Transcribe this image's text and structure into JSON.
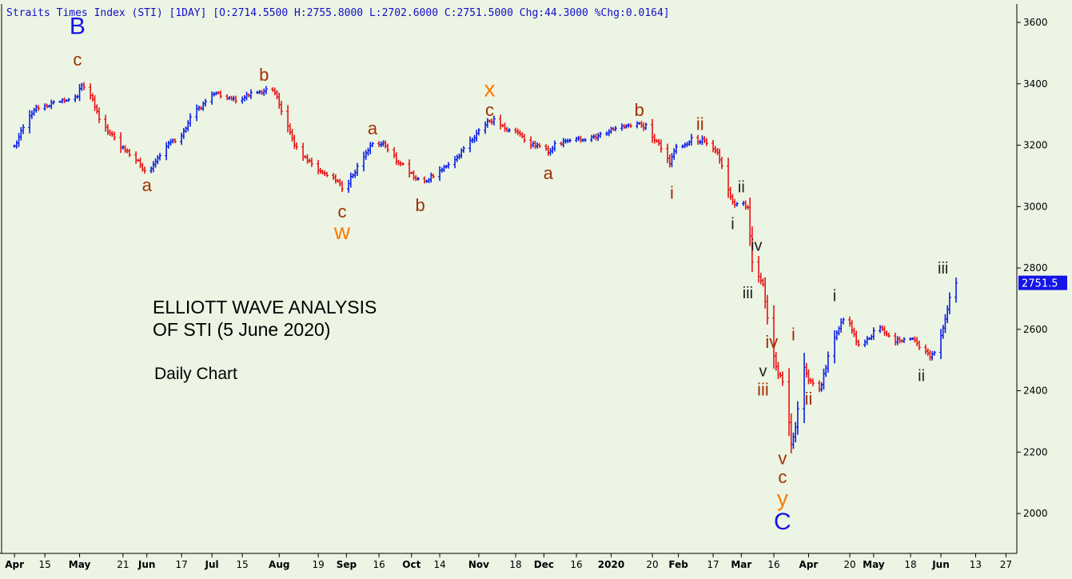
{
  "header": {
    "title": "Straits Times Index (STI) [1DAY] [O:2714.5500 H:2755.8000 L:2702.6000 C:2751.5000 Chg:44.3000 %Chg:0.0164]"
  },
  "annotation": {
    "line1": "ELLIOTT WAVE ANALYSIS",
    "line2": "OF STI (5 June 2020)",
    "line3": "Daily Chart"
  },
  "chart_data": {
    "type": "bar",
    "title": "Straits Times Index (STI) [1DAY]",
    "ohlc": {
      "open": 2714.55,
      "high": 2755.8,
      "low": 2702.6,
      "close": 2751.5,
      "chg": 44.3,
      "pct_chg": 0.0164
    },
    "last_price_label": "2751.5",
    "ylim": [
      1870,
      3660
    ],
    "y_ticks": [
      2000,
      2200,
      2400,
      2600,
      2800,
      3000,
      3200,
      3400,
      3600
    ],
    "x_ticks": [
      {
        "label": "Apr",
        "bold": true,
        "day": 0
      },
      {
        "label": "15",
        "bold": false,
        "day": 14
      },
      {
        "label": "May",
        "bold": true,
        "day": 30
      },
      {
        "label": "21",
        "bold": false,
        "day": 50
      },
      {
        "label": "Jun",
        "bold": true,
        "day": 61
      },
      {
        "label": "17",
        "bold": false,
        "day": 77
      },
      {
        "label": "Jul",
        "bold": true,
        "day": 91
      },
      {
        "label": "15",
        "bold": false,
        "day": 105
      },
      {
        "label": "Aug",
        "bold": true,
        "day": 122
      },
      {
        "label": "19",
        "bold": false,
        "day": 140
      },
      {
        "label": "Sep",
        "bold": true,
        "day": 153
      },
      {
        "label": "16",
        "bold": false,
        "day": 168
      },
      {
        "label": "Oct",
        "bold": true,
        "day": 183
      },
      {
        "label": "14",
        "bold": false,
        "day": 196
      },
      {
        "label": "Nov",
        "bold": true,
        "day": 214
      },
      {
        "label": "18",
        "bold": false,
        "day": 231
      },
      {
        "label": "Dec",
        "bold": true,
        "day": 244
      },
      {
        "label": "16",
        "bold": false,
        "day": 259
      },
      {
        "label": "2020",
        "bold": true,
        "day": 275
      },
      {
        "label": "20",
        "bold": false,
        "day": 294
      },
      {
        "label": "Feb",
        "bold": true,
        "day": 306
      },
      {
        "label": "17",
        "bold": false,
        "day": 322
      },
      {
        "label": "Mar",
        "bold": true,
        "day": 335
      },
      {
        "label": "16",
        "bold": false,
        "day": 350
      },
      {
        "label": "Apr",
        "bold": true,
        "day": 366
      },
      {
        "label": "20",
        "bold": false,
        "day": 385
      },
      {
        "label": "May",
        "bold": true,
        "day": 396
      },
      {
        "label": "18",
        "bold": false,
        "day": 413
      },
      {
        "label": "Jun",
        "bold": true,
        "day": 427
      },
      {
        "label": "13",
        "bold": false,
        "day": 443
      },
      {
        "label": "27",
        "bold": false,
        "day": 457
      }
    ],
    "x_range_days": [
      -3,
      462
    ],
    "price_path": [
      [
        0,
        3195
      ],
      [
        5,
        3270
      ],
      [
        10,
        3320
      ],
      [
        20,
        3340
      ],
      [
        29,
        3360
      ],
      [
        31,
        3400
      ],
      [
        34,
        3380
      ],
      [
        40,
        3270
      ],
      [
        45,
        3230
      ],
      [
        50,
        3190
      ],
      [
        55,
        3160
      ],
      [
        60,
        3120
      ],
      [
        63,
        3130
      ],
      [
        68,
        3180
      ],
      [
        72,
        3210
      ],
      [
        77,
        3230
      ],
      [
        82,
        3300
      ],
      [
        88,
        3340
      ],
      [
        92,
        3370
      ],
      [
        98,
        3350
      ],
      [
        104,
        3350
      ],
      [
        110,
        3370
      ],
      [
        116,
        3380
      ],
      [
        120,
        3370
      ],
      [
        124,
        3300
      ],
      [
        129,
        3200
      ],
      [
        134,
        3160
      ],
      [
        140,
        3120
      ],
      [
        146,
        3100
      ],
      [
        150,
        3070
      ],
      [
        152,
        3050
      ],
      [
        154,
        3080
      ],
      [
        158,
        3130
      ],
      [
        162,
        3180
      ],
      [
        166,
        3210
      ],
      [
        171,
        3200
      ],
      [
        176,
        3150
      ],
      [
        181,
        3120
      ],
      [
        185,
        3090
      ],
      [
        189,
        3080
      ],
      [
        194,
        3110
      ],
      [
        199,
        3130
      ],
      [
        204,
        3160
      ],
      [
        209,
        3200
      ],
      [
        214,
        3250
      ],
      [
        218,
        3280
      ],
      [
        221,
        3280
      ],
      [
        226,
        3250
      ],
      [
        232,
        3240
      ],
      [
        237,
        3210
      ],
      [
        243,
        3190
      ],
      [
        246,
        3180
      ],
      [
        249,
        3200
      ],
      [
        254,
        3210
      ],
      [
        261,
        3220
      ],
      [
        268,
        3230
      ],
      [
        275,
        3250
      ],
      [
        281,
        3260
      ],
      [
        287,
        3270
      ],
      [
        291,
        3260
      ],
      [
        294,
        3230
      ],
      [
        297,
        3200
      ],
      [
        300,
        3170
      ],
      [
        302,
        3140
      ],
      [
        304,
        3180
      ],
      [
        306,
        3210
      ],
      [
        308,
        3200
      ],
      [
        312,
        3220
      ],
      [
        317,
        3215
      ],
      [
        320,
        3200
      ],
      [
        324,
        3170
      ],
      [
        327,
        3110
      ],
      [
        330,
        3030
      ],
      [
        332,
        3000
      ],
      [
        335,
        3030
      ],
      [
        338,
        2990
      ],
      [
        340,
        2820
      ],
      [
        342,
        2790
      ],
      [
        345,
        2740
      ],
      [
        348,
        2580
      ],
      [
        350,
        2510
      ],
      [
        352,
        2460
      ],
      [
        354,
        2430
      ],
      [
        356,
        2350
      ],
      [
        357,
        2300
      ],
      [
        358,
        2230
      ],
      [
        360,
        2280
      ],
      [
        362,
        2400
      ],
      [
        364,
        2480
      ],
      [
        366,
        2440
      ],
      [
        368,
        2430
      ],
      [
        370,
        2400
      ],
      [
        372,
        2420
      ],
      [
        375,
        2510
      ],
      [
        378,
        2580
      ],
      [
        381,
        2620
      ],
      [
        384,
        2640
      ],
      [
        387,
        2580
      ],
      [
        390,
        2540
      ],
      [
        393,
        2570
      ],
      [
        396,
        2590
      ],
      [
        399,
        2600
      ],
      [
        402,
        2590
      ],
      [
        406,
        2560
      ],
      [
        410,
        2570
      ],
      [
        414,
        2570
      ],
      [
        418,
        2540
      ],
      [
        422,
        2510
      ],
      [
        425,
        2540
      ],
      [
        428,
        2600
      ],
      [
        431,
        2700
      ],
      [
        434,
        2750
      ]
    ],
    "wave_labels": [
      {
        "text": "B",
        "day": 29,
        "price": 3590,
        "color": "#1414e6",
        "size": 30
      },
      {
        "text": "c",
        "day": 29,
        "price": 3480,
        "color": "#a03000",
        "size": 22
      },
      {
        "text": "a",
        "day": 61,
        "price": 3070,
        "color": "#a03000",
        "size": 22
      },
      {
        "text": "b",
        "day": 115,
        "price": 3430,
        "color": "#a03000",
        "size": 22
      },
      {
        "text": "c",
        "day": 151,
        "price": 2985,
        "color": "#a03000",
        "size": 22
      },
      {
        "text": "w",
        "day": 151,
        "price": 2920,
        "color": "#ff7a00",
        "size": 28
      },
      {
        "text": "a",
        "day": 165,
        "price": 3255,
        "color": "#a03000",
        "size": 22
      },
      {
        "text": "b",
        "day": 187,
        "price": 3005,
        "color": "#a03000",
        "size": 22
      },
      {
        "text": "x",
        "day": 219,
        "price": 3385,
        "color": "#ff7a00",
        "size": 28
      },
      {
        "text": "c",
        "day": 219,
        "price": 3315,
        "color": "#a03000",
        "size": 22
      },
      {
        "text": "a",
        "day": 246,
        "price": 3110,
        "color": "#a03000",
        "size": 22
      },
      {
        "text": "b",
        "day": 288,
        "price": 3315,
        "color": "#a03000",
        "size": 22
      },
      {
        "text": "i",
        "day": 303,
        "price": 3045,
        "color": "#a03000",
        "size": 22
      },
      {
        "text": "ii",
        "day": 316,
        "price": 3270,
        "color": "#a03000",
        "size": 22
      },
      {
        "text": "ii",
        "day": 335,
        "price": 3065,
        "color": "#222222",
        "size": 20
      },
      {
        "text": "i",
        "day": 331,
        "price": 2945,
        "color": "#222222",
        "size": 20
      },
      {
        "text": "iv",
        "day": 342,
        "price": 2875,
        "color": "#222222",
        "size": 20
      },
      {
        "text": "iii",
        "day": 338,
        "price": 2720,
        "color": "#222222",
        "size": 20
      },
      {
        "text": "iv",
        "day": 349,
        "price": 2560,
        "color": "#a03000",
        "size": 22
      },
      {
        "text": "v",
        "day": 345,
        "price": 2465,
        "color": "#222222",
        "size": 20
      },
      {
        "text": "iii",
        "day": 345,
        "price": 2405,
        "color": "#a03000",
        "size": 22
      },
      {
        "text": "i",
        "day": 359,
        "price": 2585,
        "color": "#a03000",
        "size": 22
      },
      {
        "text": "ii",
        "day": 366,
        "price": 2375,
        "color": "#a03000",
        "size": 22
      },
      {
        "text": "v",
        "day": 354,
        "price": 2180,
        "color": "#a03000",
        "size": 22
      },
      {
        "text": "c",
        "day": 354,
        "price": 2120,
        "color": "#a03000",
        "size": 22
      },
      {
        "text": "y",
        "day": 354,
        "price": 2050,
        "color": "#ff7a00",
        "size": 28
      },
      {
        "text": "C",
        "day": 354,
        "price": 1975,
        "color": "#1414e6",
        "size": 30
      },
      {
        "text": "i",
        "day": 378,
        "price": 2710,
        "color": "#222222",
        "size": 20
      },
      {
        "text": "iii",
        "day": 428,
        "price": 2800,
        "color": "#222222",
        "size": 20
      },
      {
        "text": "ii",
        "day": 418,
        "price": 2450,
        "color": "#222222",
        "size": 20
      }
    ]
  }
}
